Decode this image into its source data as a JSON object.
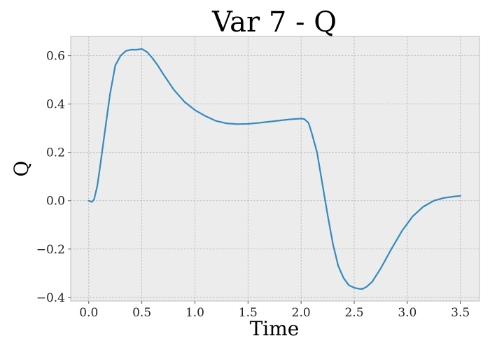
{
  "chart_data": {
    "type": "line",
    "title": "Var 7 - Q",
    "xlabel": "Time",
    "ylabel": "Q",
    "xlim": [
      -0.17,
      3.68
    ],
    "ylim": [
      -0.415,
      0.68
    ],
    "grid": true,
    "xticks": [
      0.0,
      0.5,
      1.0,
      1.5,
      2.0,
      2.5,
      3.0,
      3.5
    ],
    "xtick_labels": [
      "0.0",
      "0.5",
      "1.0",
      "1.5",
      "2.0",
      "2.5",
      "3.0",
      "3.5"
    ],
    "yticks": [
      -0.4,
      -0.2,
      0.0,
      0.2,
      0.4,
      0.6
    ],
    "ytick_labels": [
      "−0.4",
      "−0.2",
      "0.0",
      "0.2",
      "0.4",
      "0.6"
    ],
    "series": [
      {
        "color": "#348abd",
        "x": [
          0.0,
          0.03,
          0.05,
          0.08,
          0.1,
          0.15,
          0.2,
          0.25,
          0.3,
          0.35,
          0.4,
          0.45,
          0.5,
          0.55,
          0.6,
          0.65,
          0.7,
          0.8,
          0.9,
          1.0,
          1.1,
          1.2,
          1.3,
          1.4,
          1.5,
          1.6,
          1.7,
          1.8,
          1.9,
          2.0,
          2.03,
          2.07,
          2.1,
          2.15,
          2.2,
          2.25,
          2.3,
          2.35,
          2.4,
          2.45,
          2.5,
          2.55,
          2.58,
          2.62,
          2.67,
          2.75,
          2.85,
          2.95,
          3.05,
          3.15,
          3.25,
          3.35,
          3.45,
          3.5
        ],
        "y": [
          0.0,
          -0.005,
          0.005,
          0.06,
          0.12,
          0.28,
          0.44,
          0.56,
          0.6,
          0.62,
          0.625,
          0.625,
          0.628,
          0.615,
          0.59,
          0.56,
          0.525,
          0.46,
          0.41,
          0.375,
          0.35,
          0.33,
          0.32,
          0.317,
          0.318,
          0.322,
          0.327,
          0.332,
          0.337,
          0.34,
          0.338,
          0.322,
          0.28,
          0.2,
          0.07,
          -0.06,
          -0.18,
          -0.27,
          -0.32,
          -0.35,
          -0.36,
          -0.365,
          -0.365,
          -0.355,
          -0.335,
          -0.28,
          -0.2,
          -0.125,
          -0.065,
          -0.025,
          0.0,
          0.012,
          0.018,
          0.02
        ]
      }
    ]
  }
}
